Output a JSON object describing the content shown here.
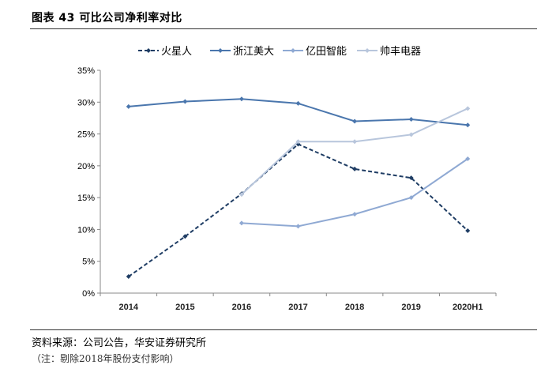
{
  "figure": {
    "title": "图表 43  可比公司净利率对比",
    "source": "资料来源：公司公告，华安证券研究所",
    "note": "（注：剔除2018年股份支付影响）"
  },
  "colors": {
    "火星人": "#1f3d64",
    "浙江美大": "#4a76ad",
    "亿田智能": "#8fa9d3",
    "帅丰电器": "#b8c6dc",
    "axis": "#888888"
  },
  "chart_data": {
    "type": "line",
    "categories": [
      "2014",
      "2015",
      "2016",
      "2017",
      "2018",
      "2019",
      "2020H1"
    ],
    "ylim": [
      0,
      35
    ],
    "yticks": [
      "0%",
      "5%",
      "10%",
      "15%",
      "20%",
      "25%",
      "30%",
      "35%"
    ],
    "ytick_values": [
      0,
      5,
      10,
      15,
      20,
      25,
      30,
      35
    ],
    "legend_position": "top",
    "series": [
      {
        "name": "火星人",
        "dashed": true,
        "values": [
          2.6,
          8.9,
          15.6,
          23.4,
          19.5,
          18.1,
          9.8
        ]
      },
      {
        "name": "浙江美大",
        "dashed": false,
        "values": [
          29.3,
          30.1,
          30.5,
          29.8,
          27.0,
          27.3,
          26.4
        ]
      },
      {
        "name": "亿田智能",
        "dashed": false,
        "values": [
          null,
          null,
          11.0,
          10.5,
          12.4,
          15.0,
          21.1
        ]
      },
      {
        "name": "帅丰电器",
        "dashed": false,
        "values": [
          null,
          null,
          15.5,
          23.8,
          23.8,
          24.9,
          29.0
        ]
      }
    ]
  }
}
